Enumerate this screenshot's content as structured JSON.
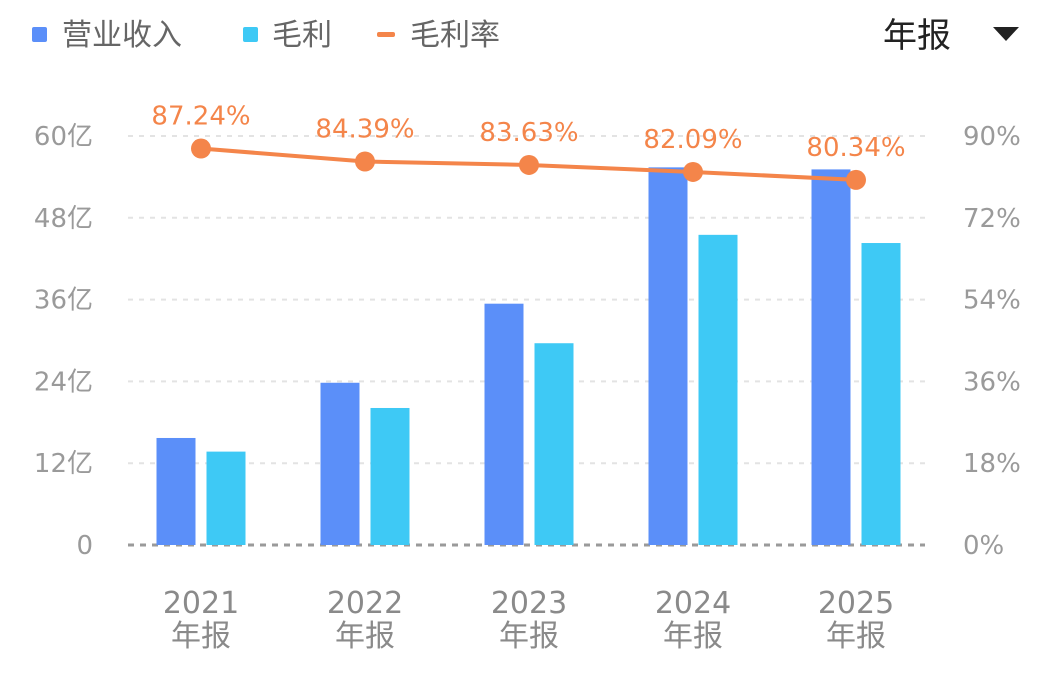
{
  "colors": {
    "revenue": "#5b8ff9",
    "gross_profit": "#3ec9f5",
    "margin": "#f4854a",
    "grid": "#e3e3e3",
    "baseline": "#9a9a9a",
    "tick": "#9a9a9a"
  },
  "legend": [
    {
      "key": "revenue",
      "label": "营业收入",
      "symbol": "square"
    },
    {
      "key": "gross_profit",
      "label": "毛利",
      "symbol": "square"
    },
    {
      "key": "margin",
      "label": "毛利率",
      "symbol": "line"
    }
  ],
  "period_selector": {
    "label": "年报",
    "icon": "caret-down-icon"
  },
  "chart_data": {
    "type": "bar",
    "title": "",
    "categories": [
      [
        "2021",
        "年报"
      ],
      [
        "2022",
        "年报"
      ],
      [
        "2023",
        "年报"
      ],
      [
        "2024",
        "年报"
      ],
      [
        "2025",
        "年报"
      ]
    ],
    "series": [
      {
        "name": "营业收入",
        "type": "bar",
        "axis": "left",
        "values": [
          15.7,
          23.8,
          35.4,
          55.4,
          55.1
        ]
      },
      {
        "name": "毛利",
        "type": "bar",
        "axis": "left",
        "values": [
          13.7,
          20.1,
          29.6,
          45.5,
          44.3
        ]
      },
      {
        "name": "毛利率",
        "type": "line",
        "axis": "right",
        "values": [
          87.24,
          84.39,
          83.63,
          82.09,
          80.34
        ],
        "labels": [
          "87.24%",
          "84.39%",
          "83.63%",
          "82.09%",
          "80.34%"
        ]
      }
    ],
    "y_left": {
      "min": 0,
      "max": 60,
      "ticks": [
        "0",
        "12亿",
        "24亿",
        "36亿",
        "48亿",
        "60亿"
      ]
    },
    "y_right": {
      "min": 0,
      "max": 90,
      "ticks": [
        "0%",
        "18%",
        "36%",
        "54%",
        "72%",
        "90%"
      ]
    },
    "grid": true,
    "legend_position": "top-left"
  }
}
